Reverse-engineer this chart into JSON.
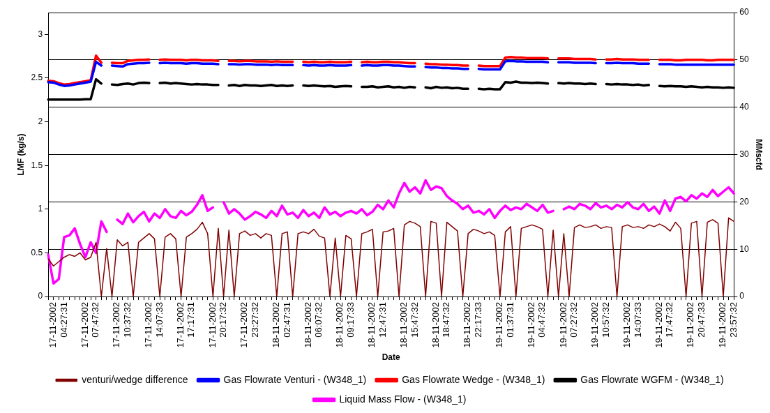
{
  "chart_data": {
    "type": "line",
    "xlabel": "Date",
    "ylabel": "LMF (kg/s)",
    "y2label": "MMscfd",
    "categories": [
      null,
      null,
      "17-11-2002 04:27:31",
      null,
      null,
      null,
      null,
      null,
      "17-11-2002 07:47:32",
      null,
      null,
      null,
      null,
      null,
      "17-11-2002 10:37:32",
      null,
      null,
      null,
      null,
      null,
      "17-11-2002 14:07:33",
      null,
      null,
      null,
      null,
      null,
      "17-11-2002 17:17:31",
      null,
      null,
      null,
      null,
      null,
      "17-11-2002 20:17:32",
      null,
      null,
      null,
      null,
      null,
      "17-11-2002 23:27:32",
      null,
      null,
      null,
      null,
      null,
      "18-11-2002 02:47:31",
      null,
      null,
      null,
      null,
      null,
      "18-11-2002 06:07:32",
      null,
      null,
      null,
      null,
      null,
      "18-11-2002 09:17:33",
      null,
      null,
      null,
      null,
      null,
      "18-11-2002 12:47:31",
      null,
      null,
      null,
      null,
      null,
      "18-11-2002 15:47:32",
      null,
      null,
      null,
      null,
      null,
      "18-11-2002 18:47:32",
      null,
      null,
      null,
      null,
      null,
      "18-11-2002 22:17:33",
      null,
      null,
      null,
      null,
      null,
      "19-11-2002 01:37:31",
      null,
      null,
      null,
      null,
      null,
      "19-11-2002 04:47:32",
      null,
      null,
      null,
      null,
      null,
      "19-11-2002 07:27:32",
      null,
      null,
      null,
      null,
      null,
      "19-11-2002 10:57:32",
      null,
      null,
      null,
      null,
      null,
      "19-11-2002 14:07:33",
      null,
      null,
      null,
      null,
      null,
      "19-11-2002 17:47:32",
      null,
      null,
      null,
      null,
      null,
      "19-11-2002 20:47:33",
      null,
      null,
      null,
      null,
      null,
      "19-11-2002 23:57:32",
      null
    ],
    "series": [
      {
        "name": "Gas Flowrate Venturi - (W348_1)",
        "color": "#0000ff",
        "axis": "y2",
        "values": [
          45.3,
          45.2,
          44.8,
          44.5,
          44.6,
          44.8,
          45.0,
          45.2,
          45.4,
          49.6,
          48.8,
          null,
          48.8,
          48.7,
          48.6,
          49.1,
          49.2,
          49.3,
          49.3,
          49.4,
          null,
          49.3,
          49.4,
          49.3,
          49.3,
          49.3,
          49.2,
          49.3,
          49.3,
          49.2,
          49.2,
          49.2,
          49.1,
          null,
          49.1,
          49.1,
          49.0,
          49.1,
          49.1,
          49.0,
          49.0,
          49.0,
          48.9,
          49.0,
          48.9,
          48.9,
          48.9,
          null,
          48.9,
          48.8,
          48.9,
          48.8,
          48.8,
          48.9,
          48.8,
          48.8,
          48.8,
          48.9,
          null,
          48.8,
          48.9,
          48.8,
          48.8,
          48.9,
          48.9,
          48.8,
          48.8,
          48.7,
          48.6,
          48.6,
          null,
          48.5,
          48.4,
          48.4,
          48.3,
          48.3,
          48.2,
          48.2,
          48.1,
          48.1,
          null,
          48.1,
          48.0,
          48.0,
          48.0,
          48.0,
          49.7,
          49.8,
          49.7,
          49.7,
          49.6,
          49.6,
          49.6,
          49.6,
          49.5,
          null,
          49.5,
          49.5,
          49.5,
          49.4,
          49.4,
          49.4,
          49.4,
          49.3,
          null,
          49.3,
          49.3,
          49.4,
          49.3,
          49.3,
          49.3,
          49.2,
          49.2,
          49.2,
          null,
          49.1,
          49.1,
          49.1,
          49.0,
          49.0,
          49.0,
          49.0,
          49.0,
          49.0,
          49.0,
          49.0,
          49.0,
          49.0,
          49.0,
          49.0
        ]
      },
      {
        "name": "Gas Flowrate Wedge - (W348_1)",
        "color": "#ff0000",
        "axis": "y2",
        "values": [
          45.6,
          45.5,
          45.1,
          44.8,
          44.9,
          45.1,
          45.3,
          45.5,
          45.7,
          50.9,
          49.4,
          null,
          49.4,
          49.3,
          49.3,
          49.8,
          49.9,
          50.0,
          50.0,
          50.1,
          null,
          50.0,
          50.1,
          50.0,
          50.0,
          50.0,
          49.9,
          50.0,
          50.0,
          49.9,
          49.9,
          49.9,
          49.8,
          null,
          49.8,
          49.8,
          49.7,
          49.8,
          49.8,
          49.7,
          49.7,
          49.7,
          49.6,
          49.7,
          49.6,
          49.6,
          49.6,
          null,
          49.6,
          49.5,
          49.6,
          49.5,
          49.5,
          49.6,
          49.5,
          49.5,
          49.5,
          49.6,
          null,
          49.5,
          49.6,
          49.5,
          49.5,
          49.6,
          49.6,
          49.5,
          49.5,
          49.4,
          49.3,
          49.3,
          null,
          49.2,
          49.1,
          49.1,
          49.0,
          49.0,
          48.9,
          48.9,
          48.8,
          48.8,
          null,
          48.8,
          48.7,
          48.7,
          48.7,
          48.7,
          50.5,
          50.6,
          50.5,
          50.5,
          50.4,
          50.4,
          50.4,
          50.4,
          50.3,
          null,
          50.3,
          50.3,
          50.3,
          50.2,
          50.2,
          50.2,
          50.2,
          50.1,
          null,
          50.1,
          50.1,
          50.2,
          50.1,
          50.1,
          50.1,
          50.0,
          50.0,
          50.0,
          null,
          50.0,
          50.0,
          50.0,
          49.9,
          49.9,
          50.0,
          50.0,
          50.0,
          50.0,
          49.9,
          49.9,
          50.0,
          50.0,
          50.0,
          50.0
        ]
      },
      {
        "name": "Gas Flowrate WGFM - (W348_1)",
        "color": "#000000",
        "axis": "y2",
        "values": [
          41.6,
          41.6,
          41.6,
          41.6,
          41.6,
          41.6,
          41.6,
          41.7,
          41.7,
          45.9,
          45.0,
          null,
          44.8,
          44.7,
          44.9,
          45.0,
          44.8,
          45.1,
          45.2,
          45.1,
          null,
          45.1,
          45.2,
          45.0,
          45.1,
          45.0,
          44.9,
          44.8,
          44.9,
          44.8,
          44.8,
          44.7,
          44.7,
          null,
          44.6,
          44.7,
          44.5,
          44.7,
          44.6,
          44.6,
          44.5,
          44.6,
          44.7,
          44.5,
          44.6,
          44.5,
          44.6,
          null,
          44.6,
          44.5,
          44.6,
          44.5,
          44.4,
          44.5,
          44.3,
          44.4,
          44.5,
          44.4,
          null,
          44.3,
          44.3,
          44.4,
          44.2,
          44.3,
          44.4,
          44.2,
          44.3,
          44.1,
          44.3,
          44.2,
          null,
          44.2,
          44.0,
          44.3,
          44.1,
          44.2,
          44.0,
          44.1,
          43.9,
          43.9,
          null,
          43.9,
          43.8,
          43.9,
          43.8,
          43.8,
          45.3,
          45.2,
          45.4,
          45.2,
          45.2,
          45.1,
          45.2,
          45.1,
          45.0,
          null,
          45.1,
          45.0,
          45.1,
          45.0,
          45.0,
          44.9,
          45.0,
          44.9,
          null,
          44.9,
          44.8,
          44.9,
          44.8,
          44.8,
          44.7,
          44.8,
          44.6,
          44.7,
          null,
          44.5,
          44.4,
          44.5,
          44.4,
          44.4,
          44.3,
          44.4,
          44.3,
          44.2,
          44.3,
          44.2,
          44.2,
          44.1,
          44.2,
          44.1
        ]
      },
      {
        "name": "Liquid Mass Flow - (W348_1)",
        "color": "#ff00ff",
        "axis": "y",
        "values": [
          0.48,
          0.15,
          0.2,
          0.68,
          0.7,
          0.78,
          0.6,
          0.45,
          0.62,
          0.5,
          0.86,
          0.74,
          null,
          0.88,
          0.83,
          0.95,
          0.85,
          0.92,
          0.97,
          0.86,
          0.95,
          0.9,
          1.0,
          0.92,
          0.9,
          0.98,
          0.93,
          0.97,
          1.05,
          1.16,
          0.98,
          1.02,
          null,
          1.08,
          0.95,
          1.0,
          0.95,
          0.88,
          0.92,
          0.97,
          0.94,
          0.9,
          0.98,
          0.92,
          1.04,
          0.94,
          0.96,
          0.9,
          0.99,
          0.92,
          0.96,
          0.9,
          1.02,
          0.94,
          0.97,
          0.92,
          0.96,
          0.98,
          0.95,
          1.0,
          0.93,
          0.97,
          1.05,
          1.0,
          1.1,
          1.02,
          1.18,
          1.3,
          1.2,
          1.25,
          1.18,
          1.33,
          1.22,
          1.26,
          1.24,
          1.15,
          1.1,
          1.06,
          1.0,
          1.04,
          0.96,
          0.98,
          0.94,
          1.0,
          0.9,
          0.98,
          1.04,
          0.99,
          1.02,
          1.0,
          1.06,
          1.02,
          0.98,
          1.05,
          0.96,
          0.98,
          null,
          1.0,
          1.03,
          1.0,
          1.06,
          1.04,
          1.0,
          1.07,
          1.02,
          1.04,
          1.0,
          1.05,
          1.02,
          1.08,
          1.02,
          1.0,
          1.06,
          0.98,
          1.03,
          0.95,
          1.1,
          0.98,
          1.12,
          1.14,
          1.09,
          1.16,
          1.12,
          1.18,
          1.14,
          1.22,
          1.15,
          1.2,
          1.25,
          1.18
        ]
      },
      {
        "name": "venturi/wedge difference",
        "color": "#800000",
        "axis": "y",
        "values": [
          0.43,
          0.35,
          0.4,
          0.45,
          0.48,
          0.46,
          0.5,
          0.42,
          0.45,
          0.62,
          0,
          0.55,
          0,
          0.65,
          0.58,
          0.62,
          0,
          0.62,
          0.67,
          0.72,
          0.66,
          0,
          0.68,
          0.72,
          0.66,
          0,
          0.68,
          0.72,
          0.77,
          0.85,
          0.72,
          0,
          0.78,
          0,
          0.76,
          0,
          0.72,
          0.75,
          0.7,
          0.72,
          0.67,
          0.72,
          0.7,
          0,
          0.72,
          0.74,
          0,
          0.72,
          0.74,
          0.72,
          0.77,
          0.69,
          0.67,
          0,
          0.67,
          0,
          0.7,
          0.66,
          0,
          0.72,
          0.74,
          0.77,
          0,
          0.74,
          0.75,
          0.78,
          0,
          0.82,
          0.86,
          0.84,
          0.8,
          0,
          0.86,
          0.84,
          0,
          0.85,
          0.8,
          0.75,
          0,
          0.72,
          0.77,
          0.75,
          0.72,
          0.74,
          0.7,
          0,
          0.74,
          0.8,
          0,
          0.78,
          0.8,
          0.82,
          0.8,
          0.77,
          0,
          0.76,
          0,
          0.72,
          0,
          0.79,
          0.82,
          0.79,
          0.8,
          0.82,
          0.78,
          0.8,
          0.79,
          0,
          0.8,
          0.82,
          0.79,
          0.8,
          0.78,
          0.82,
          0.8,
          0.83,
          0.8,
          0.75,
          0.85,
          0.78,
          0,
          0.84,
          0.86,
          0,
          0.85,
          0.88,
          0.84,
          0,
          0.9,
          0.86
        ]
      }
    ],
    "ylim": [
      0,
      3.25
    ],
    "yticks": [
      0,
      0.5,
      1,
      1.5,
      2,
      2.5,
      3
    ],
    "y2lim": [
      0,
      60
    ],
    "y2ticks": [
      0,
      10,
      20,
      30,
      40,
      50,
      60
    ],
    "grid": "y2",
    "legend": "bottom",
    "marker": "none",
    "line_style": "solid"
  }
}
